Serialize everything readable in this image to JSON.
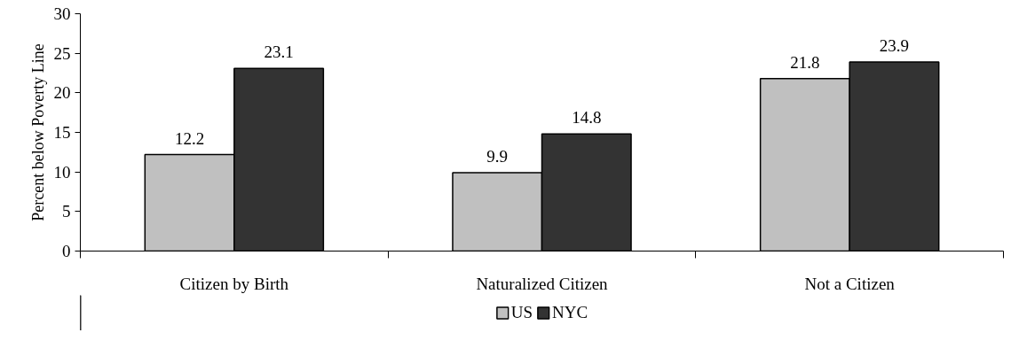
{
  "chart_data": {
    "type": "bar",
    "ylabel": "Percent below Poverty Line",
    "categories": [
      "Citizen by Birth",
      "Naturalized Citizen",
      "Not a Citizen"
    ],
    "series": [
      {
        "name": "US",
        "color": "#c0c0c0",
        "values": [
          12.2,
          9.9,
          21.8
        ]
      },
      {
        "name": "NYC",
        "color": "#333333",
        "values": [
          23.1,
          14.8,
          23.9
        ]
      }
    ],
    "ylim": [
      0,
      30
    ],
    "yticks": [
      0,
      5,
      10,
      15,
      20,
      25,
      30
    ],
    "data_labels": true,
    "grid": false,
    "legend": "bottom"
  }
}
